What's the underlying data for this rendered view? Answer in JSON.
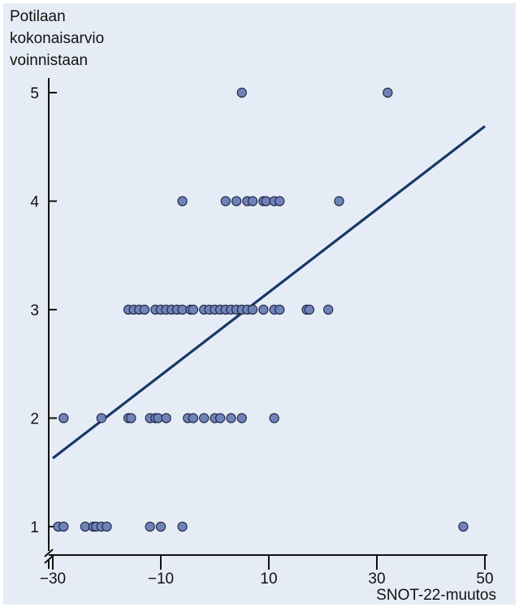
{
  "chart_data": {
    "type": "scatter",
    "title": "",
    "ylabel_lines": [
      "Potilaan",
      "kokonaisarvio",
      "voinnistaan"
    ],
    "xlabel": "SNOT-22-muutos",
    "x_ticks": [
      -30,
      -10,
      10,
      30,
      50
    ],
    "x_tick_labels": [
      "−30",
      "−10",
      "10",
      "30",
      "50"
    ],
    "y_ticks": [
      1,
      2,
      3,
      4,
      5
    ],
    "y_tick_labels": [
      "1",
      "2",
      "3",
      "4",
      "5"
    ],
    "xlim": [
      -30,
      50
    ],
    "ylim": [
      0.5,
      5.1
    ],
    "y_axis_break": true,
    "grid": false,
    "colors": {
      "point_fill": "#6f83b8",
      "point_edge": "#1b2440",
      "line": "#173766",
      "background": "#e6ecf6"
    },
    "points": [
      {
        "x": 5,
        "y": 5
      },
      {
        "x": 32,
        "y": 5
      },
      {
        "x": -6,
        "y": 4
      },
      {
        "x": 2,
        "y": 4
      },
      {
        "x": 4,
        "y": 4
      },
      {
        "x": 6,
        "y": 4
      },
      {
        "x": 7,
        "y": 4
      },
      {
        "x": 9,
        "y": 4
      },
      {
        "x": 9.5,
        "y": 4
      },
      {
        "x": 11,
        "y": 4
      },
      {
        "x": 12,
        "y": 4
      },
      {
        "x": 23,
        "y": 4
      },
      {
        "x": -16,
        "y": 3
      },
      {
        "x": -15,
        "y": 3
      },
      {
        "x": -14,
        "y": 3
      },
      {
        "x": -13,
        "y": 3
      },
      {
        "x": -11,
        "y": 3
      },
      {
        "x": -10,
        "y": 3
      },
      {
        "x": -9,
        "y": 3
      },
      {
        "x": -8,
        "y": 3
      },
      {
        "x": -7,
        "y": 3
      },
      {
        "x": -6,
        "y": 3
      },
      {
        "x": -4.5,
        "y": 3
      },
      {
        "x": -4,
        "y": 3
      },
      {
        "x": -2,
        "y": 3
      },
      {
        "x": -1,
        "y": 3
      },
      {
        "x": 0,
        "y": 3
      },
      {
        "x": 1,
        "y": 3
      },
      {
        "x": 2,
        "y": 3
      },
      {
        "x": 3,
        "y": 3
      },
      {
        "x": 4,
        "y": 3
      },
      {
        "x": 5,
        "y": 3
      },
      {
        "x": 6,
        "y": 3
      },
      {
        "x": 7,
        "y": 3
      },
      {
        "x": 9,
        "y": 3
      },
      {
        "x": 11,
        "y": 3
      },
      {
        "x": 12,
        "y": 3
      },
      {
        "x": 17,
        "y": 3
      },
      {
        "x": 17.5,
        "y": 3
      },
      {
        "x": 21,
        "y": 3
      },
      {
        "x": -28,
        "y": 2
      },
      {
        "x": -21,
        "y": 2
      },
      {
        "x": -16,
        "y": 2
      },
      {
        "x": -15.5,
        "y": 2
      },
      {
        "x": -12,
        "y": 2
      },
      {
        "x": -11,
        "y": 2
      },
      {
        "x": -10.5,
        "y": 2
      },
      {
        "x": -9,
        "y": 2
      },
      {
        "x": -5,
        "y": 2
      },
      {
        "x": -4,
        "y": 2
      },
      {
        "x": -2,
        "y": 2
      },
      {
        "x": 0,
        "y": 2
      },
      {
        "x": 1,
        "y": 2
      },
      {
        "x": 3,
        "y": 2
      },
      {
        "x": 5,
        "y": 2
      },
      {
        "x": 11,
        "y": 2
      },
      {
        "x": -29,
        "y": 1
      },
      {
        "x": -28,
        "y": 1
      },
      {
        "x": -24,
        "y": 1
      },
      {
        "x": -22.5,
        "y": 1
      },
      {
        "x": -22,
        "y": 1
      },
      {
        "x": -21,
        "y": 1
      },
      {
        "x": -20,
        "y": 1
      },
      {
        "x": -12,
        "y": 1
      },
      {
        "x": -10,
        "y": 1
      },
      {
        "x": -6,
        "y": 1
      },
      {
        "x": 46,
        "y": 1
      }
    ],
    "regression_line": {
      "x": [
        -30,
        50
      ],
      "y": [
        1.63,
        4.69
      ]
    }
  }
}
